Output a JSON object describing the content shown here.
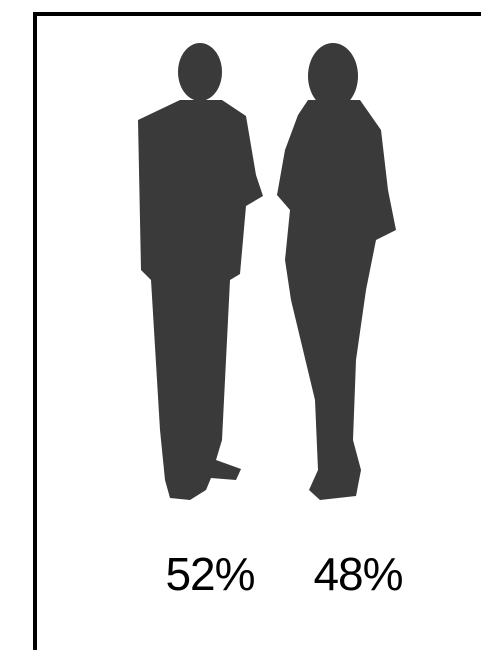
{
  "labels": [
    "52%",
    "48%"
  ]
}
